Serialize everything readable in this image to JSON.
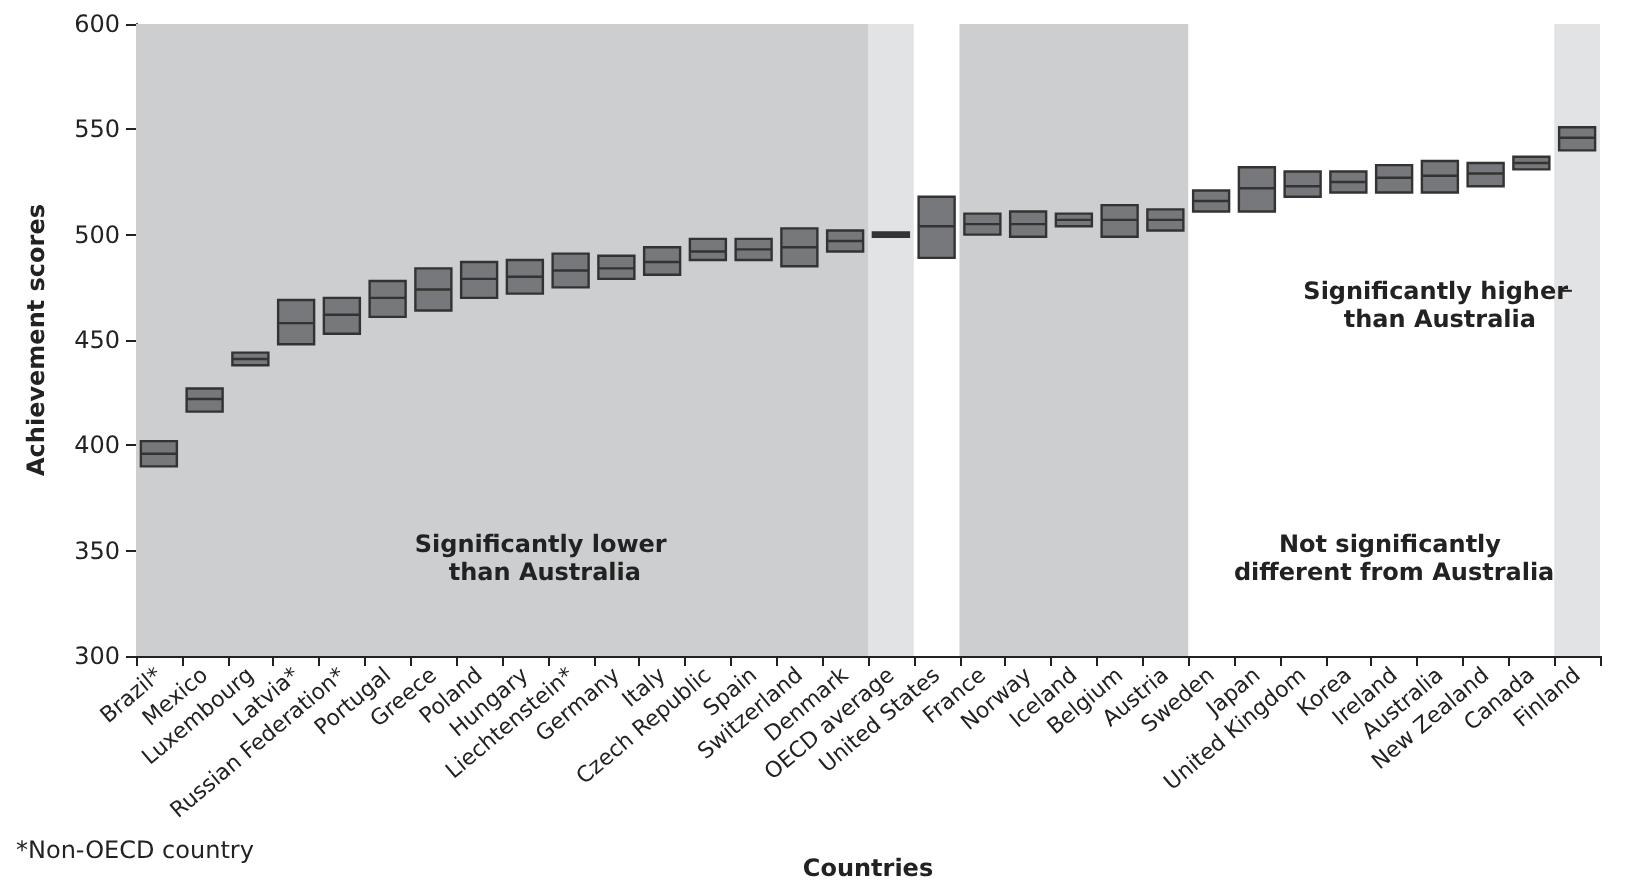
{
  "chart_data": {
    "type": "box",
    "xlabel": "Countries",
    "ylabel": "Achievement scores",
    "categories": [
      "Brazil*",
      "Mexico",
      "Luxembourg",
      "Latvia*",
      "Russian Federation*",
      "Portugal",
      "Greece",
      "Poland",
      "Hungary",
      "Liechtenstein*",
      "Germany",
      "Italy",
      "Czech Republic",
      "Spain",
      "Switzerland",
      "Denmark",
      "OECD average",
      "United States",
      "France",
      "Norway",
      "Iceland",
      "Belgium",
      "Austria",
      "Sweden",
      "Japan",
      "United Kingdom",
      "Korea",
      "Ireland",
      "Australia",
      "New Zealand",
      "Canada",
      "Finland"
    ],
    "series": [
      {
        "color": "#77787b",
        "boxes": [
          {
            "low": 390,
            "q1": 390,
            "median": 396,
            "q3": 402,
            "high": 402
          },
          {
            "low": 416,
            "q1": 416,
            "median": 422,
            "q3": 427,
            "high": 427
          },
          {
            "low": 438,
            "q1": 438,
            "median": 441,
            "q3": 444,
            "high": 444
          },
          {
            "low": 448,
            "q1": 448,
            "median": 458,
            "q3": 469,
            "high": 469
          },
          {
            "low": 453,
            "q1": 453,
            "median": 462,
            "q3": 470,
            "high": 470
          },
          {
            "low": 461,
            "q1": 461,
            "median": 470,
            "q3": 478,
            "high": 478
          },
          {
            "low": 464,
            "q1": 464,
            "median": 474,
            "q3": 484,
            "high": 484
          },
          {
            "low": 470,
            "q1": 470,
            "median": 479,
            "q3": 487,
            "high": 487
          },
          {
            "low": 472,
            "q1": 472,
            "median": 480,
            "q3": 488,
            "high": 488
          },
          {
            "low": 475,
            "q1": 475,
            "median": 483,
            "q3": 491,
            "high": 491
          },
          {
            "low": 479,
            "q1": 479,
            "median": 484,
            "q3": 490,
            "high": 490
          },
          {
            "low": 481,
            "q1": 481,
            "median": 487,
            "q3": 494,
            "high": 494
          },
          {
            "low": 488,
            "q1": 488,
            "median": 492,
            "q3": 498,
            "high": 498
          },
          {
            "low": 488,
            "q1": 488,
            "median": 493,
            "q3": 498,
            "high": 498
          },
          {
            "low": 485,
            "q1": 485,
            "median": 494,
            "q3": 503,
            "high": 503
          },
          {
            "low": 492,
            "q1": 492,
            "median": 497,
            "q3": 502,
            "high": 502
          },
          {
            "low": 499,
            "q1": 499,
            "median": 500,
            "q3": 501,
            "high": 501
          },
          {
            "low": 489,
            "q1": 489,
            "median": 504,
            "q3": 518,
            "high": 518
          },
          {
            "low": 500,
            "q1": 500,
            "median": 505,
            "q3": 510,
            "high": 510
          },
          {
            "low": 499,
            "q1": 499,
            "median": 505,
            "q3": 511,
            "high": 511
          },
          {
            "low": 504,
            "q1": 504,
            "median": 507,
            "q3": 510,
            "high": 510
          },
          {
            "low": 499,
            "q1": 499,
            "median": 507,
            "q3": 514,
            "high": 514
          },
          {
            "low": 502,
            "q1": 502,
            "median": 507,
            "q3": 512,
            "high": 512
          },
          {
            "low": 511,
            "q1": 511,
            "median": 516,
            "q3": 521,
            "high": 521
          },
          {
            "low": 511,
            "q1": 511,
            "median": 522,
            "q3": 532,
            "high": 532
          },
          {
            "low": 518,
            "q1": 518,
            "median": 523,
            "q3": 530,
            "high": 530
          },
          {
            "low": 520,
            "q1": 520,
            "median": 525,
            "q3": 530,
            "high": 530
          },
          {
            "low": 520,
            "q1": 520,
            "median": 527,
            "q3": 533,
            "high": 533
          },
          {
            "low": 520,
            "q1": 520,
            "median": 528,
            "q3": 535,
            "high": 535
          },
          {
            "low": 523,
            "q1": 523,
            "median": 529,
            "q3": 534,
            "high": 534
          },
          {
            "low": 531,
            "q1": 531,
            "median": 534,
            "q3": 537,
            "high": 537
          },
          {
            "low": 540,
            "q1": 540,
            "median": 546,
            "q3": 551,
            "high": 551
          }
        ]
      }
    ],
    "ylim": [
      300,
      600
    ],
    "yticks": [
      300,
      350,
      400,
      450,
      500,
      550,
      600
    ],
    "grid": false,
    "bands": [
      {
        "axis": "x",
        "from": "Brazil*",
        "to": "Denmark",
        "color": "#cdcecf"
      },
      {
        "axis": "x",
        "from": "OECD average",
        "to": "OECD average",
        "color": "#e2e3e5"
      },
      {
        "axis": "x",
        "from": "France",
        "to": "Austria",
        "color": "#cdcecf"
      },
      {
        "axis": "x",
        "from": "Finland",
        "to": "Finland",
        "color": "#e2e3e5"
      }
    ],
    "annotations": [
      "Significantly lower than Australia",
      "Not significantly different from Australia",
      "Significantly higher than Australia",
      "*Non-OECD country"
    ]
  }
}
